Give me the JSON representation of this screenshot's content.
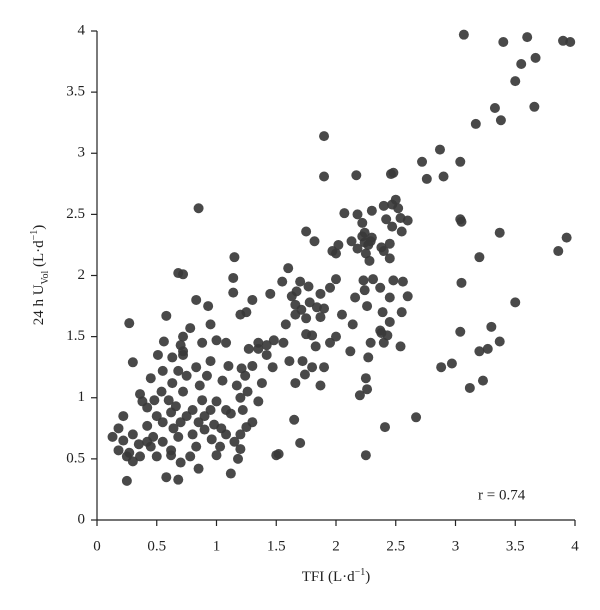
{
  "chart_data": {
    "type": "scatter",
    "x_label_parts": [
      "TFI (L·d",
      "−1",
      ")"
    ],
    "y_label_parts": [
      "24 h U",
      "Vol",
      " (L·d",
      "−1",
      ")"
    ],
    "annotation": "r = 0.74",
    "xlim": [
      0,
      4
    ],
    "ylim": [
      0,
      4
    ],
    "xticks": [
      0,
      0.5,
      1,
      1.5,
      2,
      2.5,
      3,
      3.5,
      4
    ],
    "yticks": [
      0,
      0.5,
      1,
      1.5,
      2,
      2.5,
      3,
      3.5,
      4
    ],
    "series": [
      {
        "color": "#3a3a3a",
        "x": [
          3.07,
          3.6,
          3.4,
          3.9,
          3.96,
          3.67,
          3.55,
          3.5,
          3.33,
          3.66,
          3.38,
          3.17,
          2.87,
          2.72,
          2.9,
          3.04,
          2.76,
          3.04,
          3.05,
          3.37,
          3.93,
          3.86,
          3.2,
          3.05,
          3.5,
          3.04,
          3.3,
          3.37,
          3.27,
          3.2,
          2.97,
          2.88,
          3.12,
          3.23,
          2.67,
          2.41,
          2.25,
          1.9,
          1.9,
          2.17,
          2.48,
          2.46,
          2.5,
          2.47,
          2.4,
          2.52,
          2.3,
          2.07,
          2.18,
          2.54,
          2.42,
          2.6,
          2.22,
          2.47,
          2.55,
          1.75,
          2.24,
          2.22,
          2.3,
          2.29,
          2.13,
          1.82,
          2.24,
          2.45,
          2.02,
          2.27,
          2.38,
          2.18,
          1.97,
          2.0,
          2.25,
          2.4,
          2.45,
          2.28,
          1.6,
          1.7,
          2.31,
          2.48,
          2.23,
          2.0,
          2.56,
          1.55,
          1.77,
          2.37,
          1.95,
          2.24,
          1.87,
          1.67,
          1.63,
          2.16,
          2.6,
          2.45,
          1.78,
          1.66,
          2.26,
          1.9,
          1.84,
          1.71,
          2.39,
          2.55,
          1.66,
          2.05,
          1.75,
          1.87,
          2.45,
          2.14,
          2.37,
          2.38,
          1.58,
          1.75,
          1.8,
          2.43,
          2.0,
          1.95,
          2.29,
          2.4,
          2.54,
          1.48,
          1.56,
          1.83,
          2.12,
          2.27,
          1.42,
          1.35,
          1.27,
          1.72,
          1.61,
          1.42,
          1.9,
          1.8,
          1.74,
          2.25,
          1.66,
          1.87,
          2.2,
          2.26,
          1.65,
          1.7,
          1.52,
          1.5,
          0.85,
          0.68,
          0.72,
          1.15,
          1.14,
          1.45,
          1.14,
          1.3,
          0.83,
          0.93,
          0.58,
          1.25,
          1.2,
          0.27,
          0.95,
          0.78,
          0.72,
          0.7,
          0.56,
          1.0,
          0.88,
          1.08,
          1.35,
          0.72,
          0.72,
          0.51,
          0.63,
          0.3,
          0.95,
          1.1,
          1.3,
          0.83,
          1.21,
          1.47,
          0.55,
          0.68,
          0.92,
          0.75,
          1.24,
          0.45,
          1.05,
          0.63,
          0.86,
          1.17,
          1.38,
          0.36,
          0.54,
          0.72,
          1.26,
          1.2,
          0.38,
          0.48,
          0.6,
          0.88,
          1.0,
          1.35,
          0.42,
          0.66,
          0.8,
          0.95,
          1.08,
          1.22,
          0.22,
          0.5,
          0.62,
          0.75,
          0.9,
          1.12,
          0.55,
          0.7,
          0.85,
          0.98,
          1.3,
          0.18,
          0.42,
          0.64,
          0.9,
          1.04,
          1.25,
          0.13,
          0.3,
          0.47,
          0.68,
          0.8,
          1.08,
          1.2,
          0.22,
          0.35,
          0.42,
          0.55,
          0.96,
          1.15,
          0.18,
          0.27,
          0.45,
          0.62,
          0.83,
          1.03,
          1.2,
          0.25,
          0.36,
          0.5,
          0.62,
          0.78,
          1.0,
          1.18,
          0.3,
          0.7,
          1.12,
          0.58,
          0.68,
          0.25,
          0.85
        ],
        "values": [
          3.97,
          3.95,
          3.91,
          3.92,
          3.91,
          3.78,
          3.73,
          3.59,
          3.37,
          3.38,
          3.27,
          3.24,
          3.03,
          2.93,
          2.81,
          2.93,
          2.79,
          2.46,
          2.44,
          2.35,
          2.31,
          2.2,
          2.15,
          1.94,
          1.78,
          1.54,
          1.58,
          1.46,
          1.4,
          1.38,
          1.28,
          1.25,
          1.08,
          1.14,
          0.84,
          0.76,
          0.53,
          3.14,
          2.81,
          2.82,
          2.84,
          2.83,
          2.62,
          2.58,
          2.57,
          2.55,
          2.53,
          2.51,
          2.5,
          2.47,
          2.46,
          2.45,
          2.43,
          2.4,
          2.36,
          2.36,
          2.35,
          2.32,
          2.31,
          2.28,
          2.28,
          2.28,
          2.27,
          2.26,
          2.25,
          2.25,
          2.23,
          2.22,
          2.2,
          2.18,
          2.18,
          2.2,
          2.14,
          2.12,
          2.06,
          1.95,
          1.97,
          1.96,
          1.96,
          1.97,
          1.95,
          1.95,
          1.91,
          1.9,
          1.9,
          1.88,
          1.85,
          1.87,
          1.83,
          1.82,
          1.83,
          1.82,
          1.78,
          1.76,
          1.75,
          1.73,
          1.74,
          1.72,
          1.7,
          1.7,
          1.68,
          1.68,
          1.65,
          1.66,
          1.62,
          1.6,
          1.55,
          1.53,
          1.6,
          1.52,
          1.51,
          1.51,
          1.5,
          1.45,
          1.45,
          1.45,
          1.42,
          1.47,
          1.45,
          1.42,
          1.38,
          1.33,
          1.43,
          1.4,
          1.4,
          1.3,
          1.3,
          1.35,
          1.25,
          1.25,
          1.19,
          1.16,
          1.12,
          1.1,
          1.02,
          1.07,
          0.82,
          0.63,
          0.54,
          0.53,
          2.55,
          2.02,
          2.01,
          2.15,
          1.98,
          1.85,
          1.86,
          1.8,
          1.8,
          1.75,
          1.67,
          1.7,
          1.68,
          1.61,
          1.6,
          1.57,
          1.5,
          1.43,
          1.46,
          1.47,
          1.45,
          1.45,
          1.45,
          1.38,
          1.35,
          1.35,
          1.33,
          1.29,
          1.3,
          1.26,
          1.26,
          1.25,
          1.24,
          1.25,
          1.22,
          1.22,
          1.18,
          1.18,
          1.18,
          1.16,
          1.14,
          1.12,
          1.1,
          1.1,
          1.12,
          1.03,
          1.05,
          1.05,
          1.05,
          1.0,
          0.97,
          0.98,
          0.98,
          0.98,
          0.97,
          0.97,
          0.92,
          0.93,
          0.9,
          0.9,
          0.9,
          0.9,
          0.85,
          0.85,
          0.88,
          0.85,
          0.85,
          0.87,
          0.8,
          0.8,
          0.8,
          0.78,
          0.8,
          0.75,
          0.77,
          0.75,
          0.74,
          0.75,
          0.76,
          0.68,
          0.7,
          0.68,
          0.68,
          0.7,
          0.7,
          0.7,
          0.65,
          0.62,
          0.64,
          0.64,
          0.66,
          0.64,
          0.57,
          0.55,
          0.6,
          0.57,
          0.6,
          0.6,
          0.58,
          0.52,
          0.52,
          0.52,
          0.53,
          0.52,
          0.53,
          0.5,
          0.48,
          0.47,
          0.38,
          0.35,
          0.33,
          0.32,
          0.42
        ]
      }
    ]
  }
}
